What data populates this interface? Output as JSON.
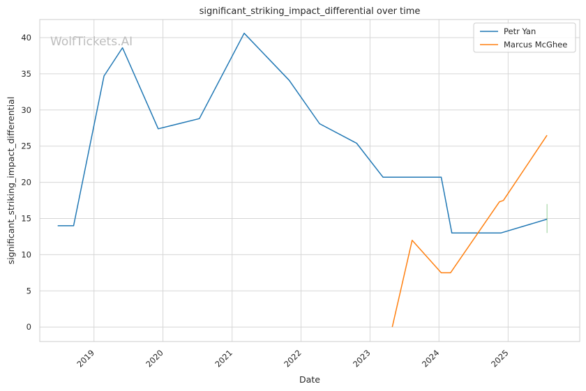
{
  "chart_data": {
    "type": "line",
    "title": "significant_striking_impact_differential over time",
    "xlabel": "Date",
    "ylabel": "significant_striking_impact_differential",
    "watermark": "WolfTickets.AI",
    "xlim": [
      "2018-03-20",
      "2026-01-15"
    ],
    "ylim": [
      -2,
      42.5
    ],
    "x_ticks": [
      "2019-01-01",
      "2020-01-01",
      "2021-01-01",
      "2022-01-01",
      "2023-01-01",
      "2024-01-01",
      "2025-01-01"
    ],
    "x_tick_labels": [
      "2019",
      "2020",
      "2021",
      "2022",
      "2023",
      "2024",
      "2025"
    ],
    "y_ticks": [
      0,
      5,
      10,
      15,
      20,
      25,
      30,
      35,
      40
    ],
    "y_tick_labels": [
      "0",
      "5",
      "10",
      "15",
      "20",
      "25",
      "30",
      "35",
      "40"
    ],
    "grid": true,
    "legend_position": "top-right",
    "colors": {
      "series1": "#1f77b4",
      "series2": "#ff7f0e",
      "grid": "#d6d6d6",
      "spine": "#cccccc"
    },
    "series": [
      {
        "name": "Petr Yan",
        "color": "#1f77b4",
        "x": [
          "2018-06-23",
          "2018-09-15",
          "2019-02-23",
          "2019-06-01",
          "2019-12-07",
          "2020-07-12",
          "2021-03-06",
          "2021-10-30",
          "2022-04-09",
          "2022-10-22",
          "2023-03-11",
          "2023-06-24",
          "2024-01-13",
          "2024-03-09",
          "2024-06-15",
          "2024-11-23",
          "2025-07-26"
        ],
        "y": [
          14.0,
          14.0,
          34.7,
          38.6,
          27.4,
          28.8,
          40.6,
          34.1,
          28.1,
          25.4,
          20.7,
          20.7,
          20.7,
          13.0,
          13.0,
          13.0,
          14.9
        ]
      },
      {
        "name": "Marcus McGhee",
        "color": "#ff7f0e",
        "x": [
          "2023-04-29",
          "2023-08-12",
          "2024-01-13",
          "2024-03-02",
          "2024-11-16",
          "2024-12-07",
          "2025-07-26"
        ],
        "y": [
          0.0,
          12.0,
          7.5,
          7.5,
          17.3,
          17.5,
          26.5
        ]
      }
    ],
    "error_bar": {
      "x": "2025-07-26",
      "y_low": 13.0,
      "y_high": 17.0,
      "color": "#2ca02c"
    }
  }
}
